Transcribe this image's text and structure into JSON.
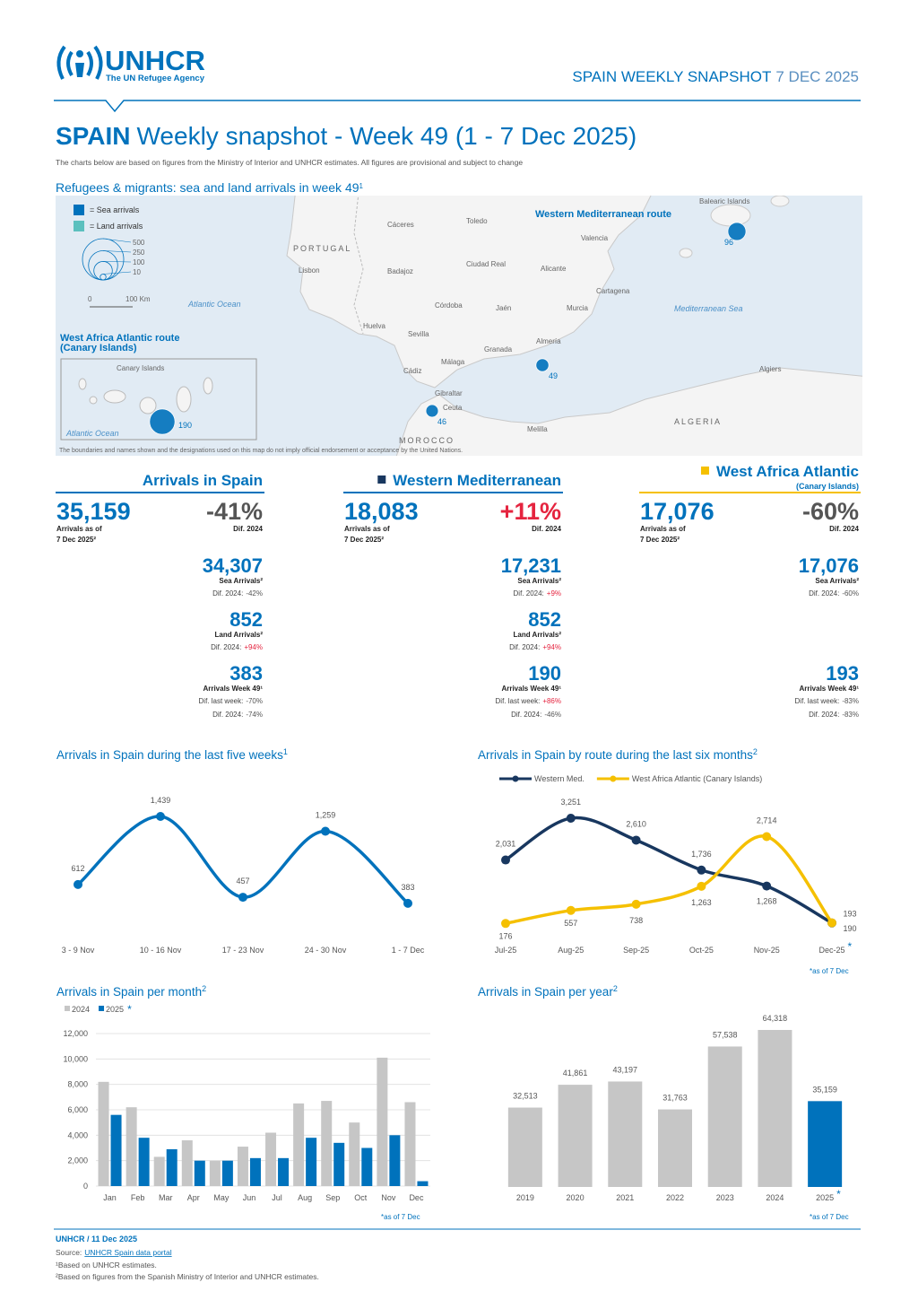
{
  "header": {
    "logo_name": "UNHCR",
    "logo_tagline": "The UN Refugee Agency",
    "snapshot_label": "SPAIN WEEKLY SNAPSHOT",
    "snapshot_date": "7 DEC 2025"
  },
  "title": {
    "country": "SPAIN",
    "text": "Weekly snapshot - Week 49 (1 - 7 Dec 2025)",
    "note": "The charts below are based on figures from the Ministry of Interior and UNHCR estimates. All figures are provisional and subject to change"
  },
  "map": {
    "title": "Refugees & migrants: sea and land arrivals in week 49",
    "title_note": "1",
    "legend_sea": "= Sea arrivals",
    "legend_land": "= Land arrivals",
    "sea_color": "#0072bc",
    "land_color": "#5bc0be",
    "legend_sizes": [
      500,
      250,
      100,
      10
    ],
    "scale_labels": [
      "0",
      "100 Km"
    ],
    "routes": [
      "Western Mediterranean route",
      "West Africa Atlantic route",
      "(Canary Islands)"
    ],
    "places": [
      "PORTUGAL",
      "Lisbon",
      "Cáceres",
      "Toledo",
      "Ciudad Real",
      "Valencia",
      "Alicante",
      "Badajoz",
      "Córdoba",
      "Jaén",
      "Murcia",
      "Cartagena",
      "Huelva",
      "Sevilla",
      "Granada",
      "Almería",
      "Cádiz",
      "Málaga",
      "Gibraltar",
      "Ceuta",
      "Melilla",
      "Algiers",
      "ALGERIA",
      "MOROCCO",
      "Balearic Islands",
      "Atlantic Ocean",
      "Mediterranean Sea",
      "Canary Islands",
      "Atlantic Ocean"
    ],
    "bubbles": [
      96,
      49,
      46,
      190
    ],
    "disclaimer": "The boundaries and names shown and the designations used on this map do not imply official endorsement or acceptance by the United Nations."
  },
  "panels": [
    {
      "title": "Arrivals in Spain",
      "rule_color": "#0072bc",
      "total": {
        "value": "35,159",
        "label_lines": [
          "Arrivals as of",
          "7 Dec 2025²"
        ],
        "diff": "-41%",
        "diff_label": "Dif. 2024"
      },
      "items": [
        {
          "value": "34,307",
          "label": "Sea Arrivals²",
          "diffs": [
            {
              "label": "Dif. 2024:",
              "value": "-42%"
            }
          ]
        },
        {
          "value": "852",
          "label": "Land Arrivals²",
          "diffs": [
            {
              "label": "Dif. 2024:",
              "value": "+94%"
            }
          ]
        },
        {
          "value": "383",
          "label": "Arrivals Week 49¹",
          "diffs": [
            {
              "label": "Dif. last week:",
              "value": "-70%"
            },
            {
              "label": "Dif. 2024:",
              "value": "-74%"
            }
          ]
        }
      ]
    },
    {
      "title": "Western Mediterranean",
      "marker_color": "#18375f",
      "rule_color": "#0072bc",
      "total": {
        "value": "18,083",
        "label_lines": [
          "Arrivals as of",
          "7 Dec 2025²"
        ],
        "diff": "+11%",
        "diff_label": "Dif. 2024"
      },
      "items": [
        {
          "value": "17,231",
          "label": "Sea Arrivals²",
          "diffs": [
            {
              "label": "Dif. 2024:",
              "value": "+9%"
            }
          ]
        },
        {
          "value": "852",
          "label": "Land Arrivals²",
          "diffs": [
            {
              "label": "Dif. 2024:",
              "value": "+94%"
            }
          ]
        },
        {
          "value": "190",
          "label": "Arrivals Week 49¹",
          "diffs": [
            {
              "label": "Dif. last week:",
              "value": "+86%"
            },
            {
              "label": "Dif. 2024:",
              "value": "-46%"
            }
          ]
        }
      ]
    },
    {
      "title": "West Africa Atlantic",
      "subtitle": "(Canary Islands)",
      "marker_color": "#f5c000",
      "rule_color": "#f5c000",
      "total": {
        "value": "17,076",
        "label_lines": [
          "Arrivals as of",
          "7 Dec 2025²"
        ],
        "diff": "-60%",
        "diff_label": "Dif. 2024"
      },
      "items": [
        {
          "value": "17,076",
          "label": "Sea Arrivals²",
          "diffs": [
            {
              "label": "Dif. 2024:",
              "value": "-60%"
            }
          ]
        },
        {
          "value": "193",
          "label": "Arrivals Week 49¹",
          "diffs": [
            {
              "label": "Dif. last week:",
              "value": "-83%"
            },
            {
              "label": "Dif. 2024:",
              "value": "-83%"
            }
          ]
        }
      ]
    }
  ],
  "chart_data": [
    {
      "type": "line",
      "title": "Arrivals in Spain during the last five weeks",
      "title_note": "1",
      "categories": [
        "3 - 9 Nov",
        "10 - 16 Nov",
        "17 - 23 Nov",
        "24 - 30 Nov",
        "1 - 7 Dec"
      ],
      "values": [
        612,
        1439,
        457,
        1259,
        383
      ],
      "value_labels": [
        "612",
        "1,439",
        "457",
        "1,259",
        "383"
      ],
      "color": "#0072bc"
    },
    {
      "type": "line",
      "title": "Arrivals in Spain by route during the last six months",
      "title_note": "2",
      "categories": [
        "Jul-25",
        "Aug-25",
        "Sep-25",
        "Oct-25",
        "Nov-25",
        "Dec-25"
      ],
      "series": [
        {
          "name": "Western Med.",
          "color": "#18375f",
          "values": [
            2031,
            3251,
            2610,
            1736,
            1268,
            190
          ],
          "value_labels": [
            "2,031",
            "3,251",
            "2,610",
            "1,736",
            "1,268",
            "190"
          ]
        },
        {
          "name": "West Africa Atlantic (Canary Islands)",
          "color": "#f5c000",
          "values": [
            176,
            557,
            738,
            1263,
            2714,
            193
          ],
          "value_labels": [
            "176",
            "557",
            "738",
            "1,263",
            "2,714",
            "193"
          ]
        }
      ],
      "asterisk": "*",
      "note": "*as of 7 Dec"
    },
    {
      "type": "bar",
      "title": "Arrivals in Spain per month",
      "title_note": "2",
      "categories": [
        "Jan",
        "Feb",
        "Mar",
        "Apr",
        "May",
        "Jun",
        "Jul",
        "Aug",
        "Sep",
        "Oct",
        "Nov",
        "Dec"
      ],
      "series": [
        {
          "name": "2024",
          "color": "#c6c6c6",
          "values": [
            8200,
            6200,
            2300,
            3600,
            2000,
            3100,
            4200,
            6500,
            6700,
            5000,
            10100,
            6600
          ]
        },
        {
          "name": "2025",
          "color": "#0072bc",
          "values": [
            5600,
            3800,
            2900,
            2000,
            2000,
            2200,
            2200,
            3800,
            3400,
            3000,
            4000,
            383
          ]
        }
      ],
      "legend_asterisk": "*",
      "ylim": [
        0,
        12000
      ],
      "yticks": [
        0,
        {
          "value": 2000,
          "label": "2,000"
        },
        {
          "value": 4000,
          "label": "4,000"
        },
        {
          "value": 6000,
          "label": "6,000"
        },
        {
          "value": 8000,
          "label": "8,000"
        },
        {
          "value": 10000,
          "label": "10,000"
        },
        {
          "value": 12000,
          "label": "12,000"
        }
      ],
      "grid": true,
      "note": "*as of 7 Dec"
    },
    {
      "type": "bar",
      "title": "Arrivals in Spain per year",
      "title_note": "2",
      "categories": [
        "2019",
        "2020",
        "2021",
        "2022",
        "2023",
        "2024",
        "2025"
      ],
      "values": [
        32513,
        41861,
        43197,
        31763,
        57538,
        64318,
        35159
      ],
      "value_labels": [
        "32,513",
        "41,861",
        "43,197",
        "31,763",
        "57,538",
        "64,318",
        "35,159"
      ],
      "colors": [
        "#c6c6c6",
        "#c6c6c6",
        "#c6c6c6",
        "#c6c6c6",
        "#c6c6c6",
        "#c6c6c6",
        "#0072bc"
      ],
      "asterisk": "*",
      "note": "*as of 7 Dec"
    }
  ],
  "footer": {
    "credit": "UNHCR / 11 Dec 2025",
    "source_label": "Source:",
    "source_link": "UNHCR Spain data portal",
    "notes": [
      "¹Based on UNHCR estimates.",
      "²Based on figures from the Spanish Ministry of Interior and UNHCR estimates."
    ]
  }
}
